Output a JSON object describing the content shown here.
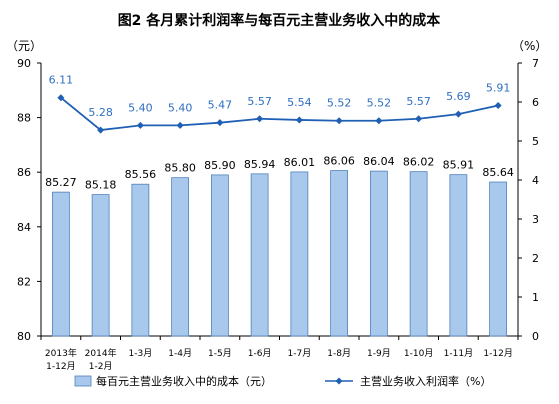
{
  "chart_data": {
    "type": "bar",
    "title": "图2  各月累计利润率与每百元主营业务收入中的成本",
    "left_axis": {
      "unit": "（元）",
      "range": [
        80,
        90
      ],
      "ticks": [
        80,
        82,
        84,
        86,
        88,
        90
      ]
    },
    "right_axis": {
      "unit": "（%）",
      "range": [
        0,
        7
      ],
      "ticks": [
        0,
        1,
        2,
        3,
        4,
        5,
        6,
        7
      ]
    },
    "categories": [
      [
        "2013年",
        "1-12月"
      ],
      [
        "2014年",
        "1-2月"
      ],
      [
        "1-3月"
      ],
      [
        "1-4月"
      ],
      [
        "1-5月"
      ],
      [
        "1-6月"
      ],
      [
        "1-7月"
      ],
      [
        "1-8月"
      ],
      [
        "1-9月"
      ],
      [
        "1-10月"
      ],
      [
        "1-11月"
      ],
      [
        "1-12月"
      ]
    ],
    "series": [
      {
        "name": "每百元主营业务收入中的成本（元）",
        "type": "bar",
        "axis": "left",
        "color": "#a9c9ec",
        "values": [
          85.27,
          85.18,
          85.56,
          85.8,
          85.9,
          85.94,
          86.01,
          86.06,
          86.04,
          86.02,
          85.91,
          85.64
        ],
        "labels": [
          "85.27",
          "85.18",
          "85.56",
          "85.80",
          "85.90",
          "85.94",
          "86.01",
          "86.06",
          "86.04",
          "86.02",
          "85.91",
          "85.64"
        ]
      },
      {
        "name": "主营业务收入利润率（%）",
        "type": "line",
        "axis": "right",
        "color": "#1f5fb4",
        "label_color": "#2f6fc0",
        "values": [
          6.11,
          5.28,
          5.4,
          5.4,
          5.47,
          5.57,
          5.54,
          5.52,
          5.52,
          5.57,
          5.69,
          5.91
        ],
        "labels": [
          "6.11",
          "5.28",
          "5.40",
          "5.40",
          "5.47",
          "5.57",
          "5.54",
          "5.52",
          "5.52",
          "5.57",
          "5.69",
          "5.91"
        ]
      }
    ],
    "grid": false,
    "legend_position": "bottom"
  }
}
